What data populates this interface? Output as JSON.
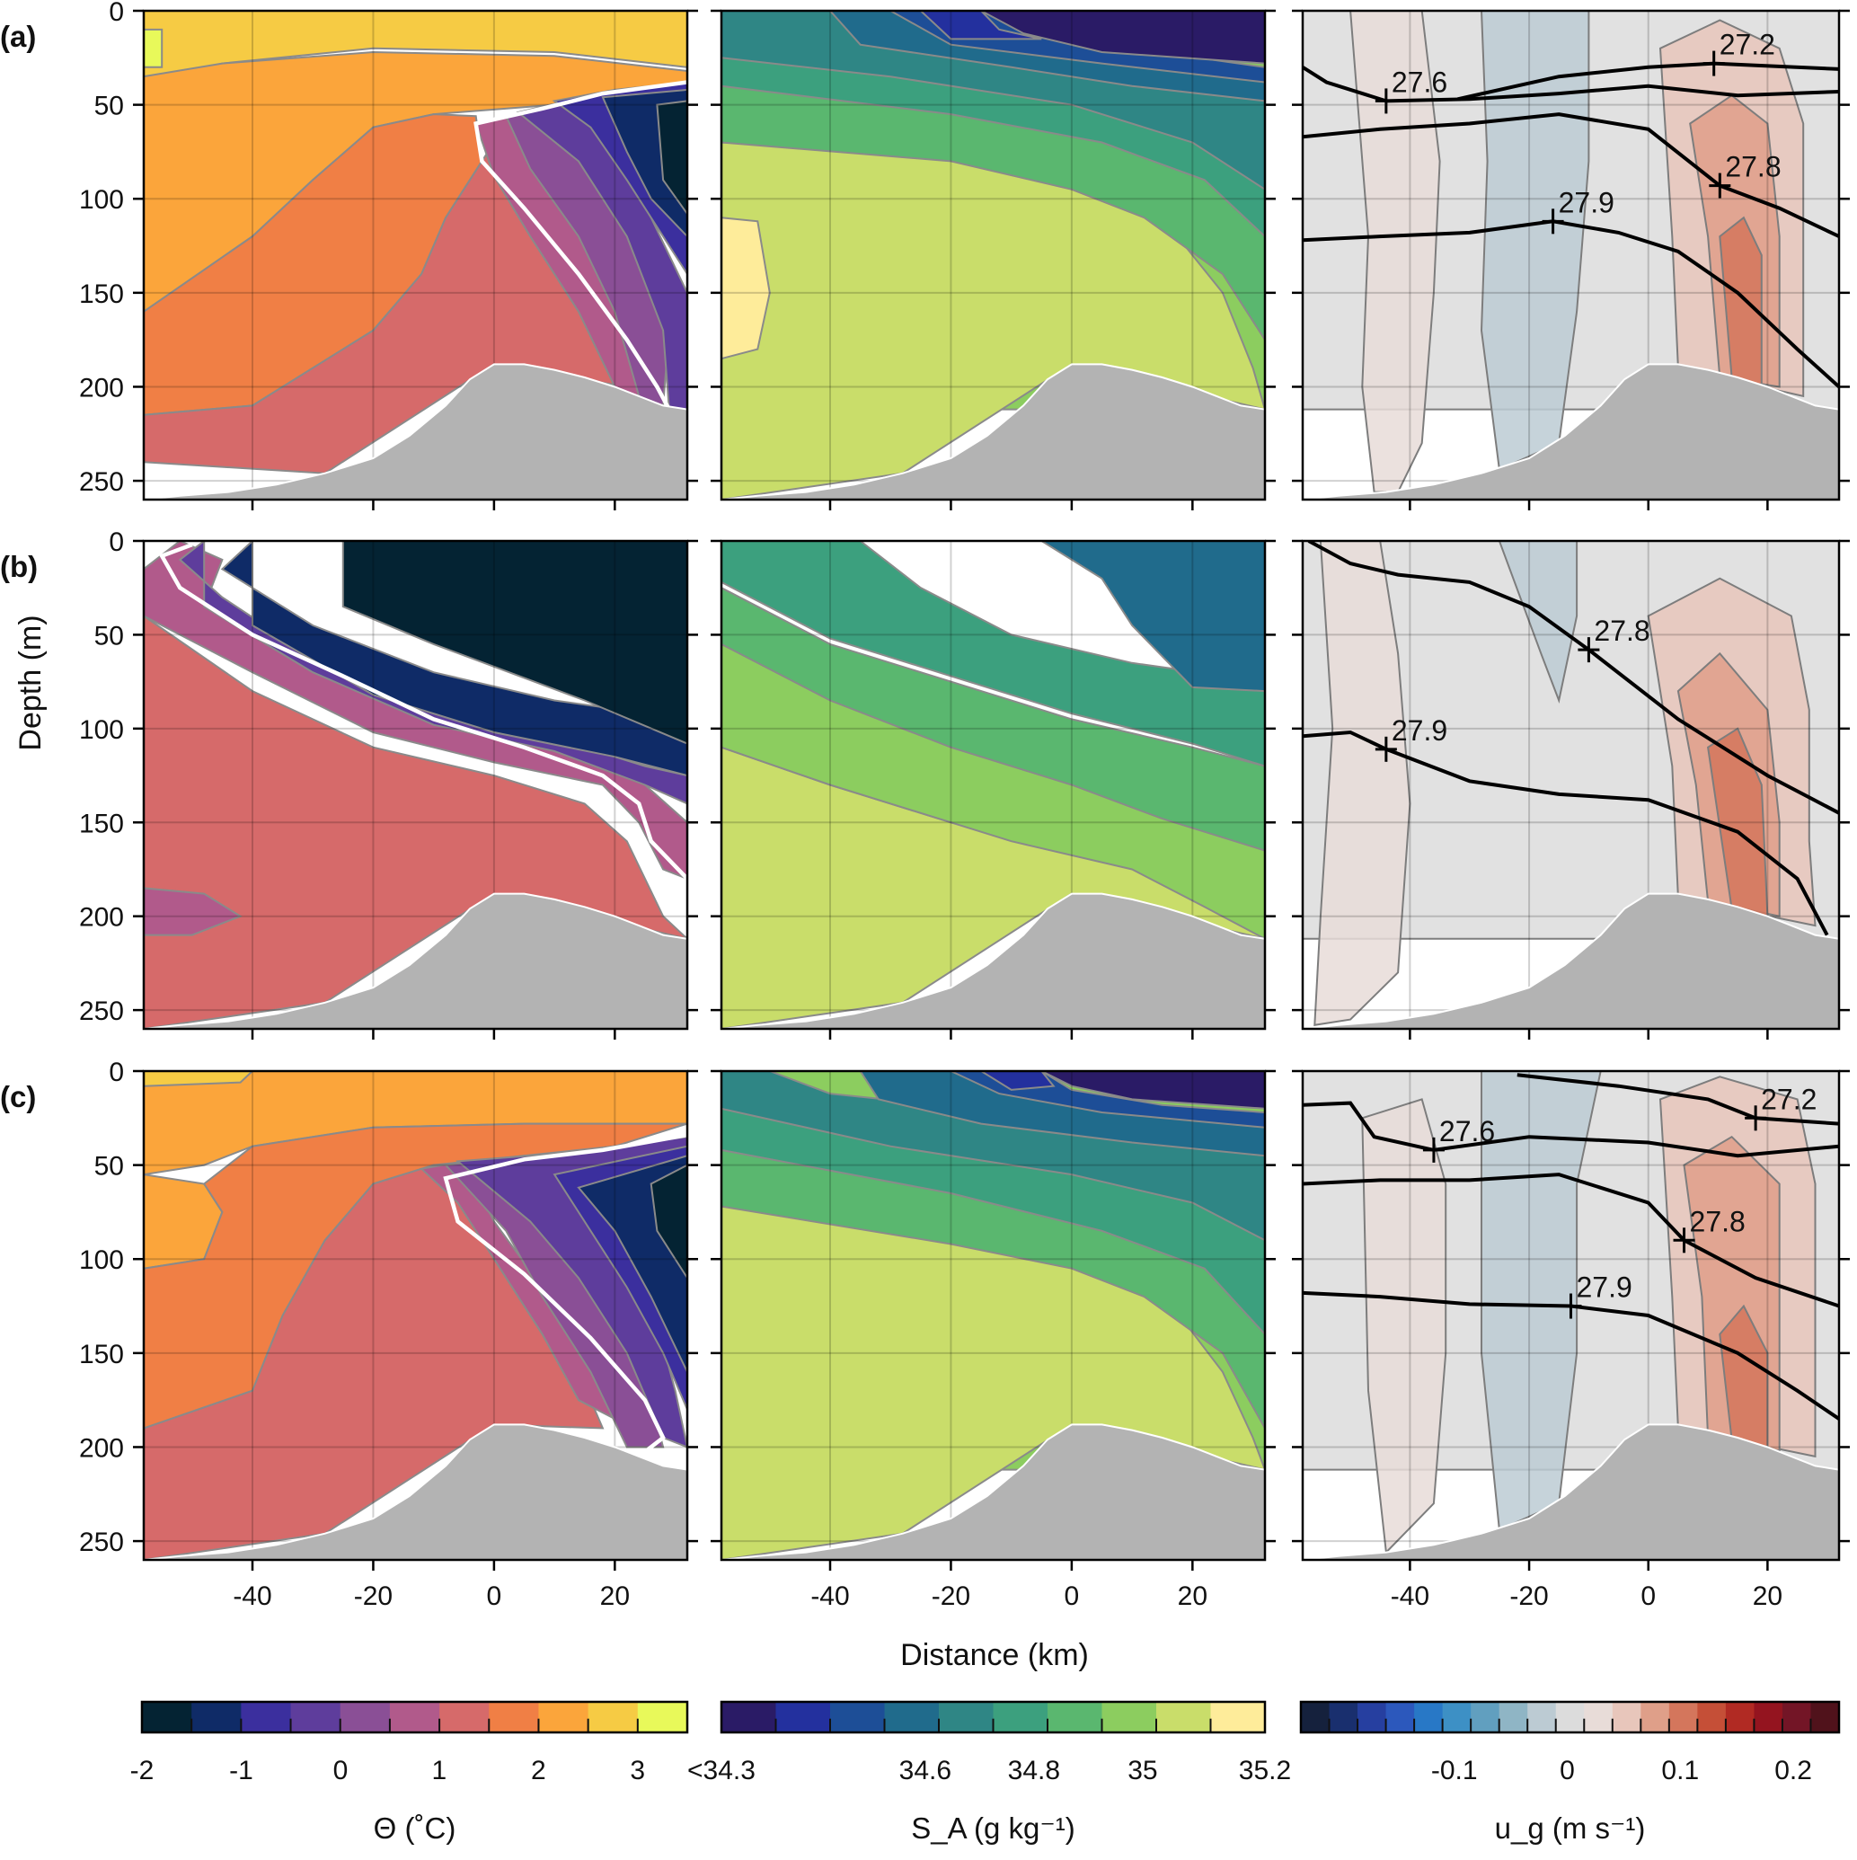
{
  "figure": {
    "panel_labels": [
      "(a)",
      "(b)",
      "(c)"
    ],
    "columns": [
      "temperature",
      "salinity",
      "velocity"
    ]
  },
  "chart_data": {
    "type": "contour-sections",
    "xlabel": "Distance (km)",
    "ylabel": "Depth (m)",
    "xlim": [
      -58,
      32
    ],
    "ylim": [
      260,
      0
    ],
    "xticks": [
      -40,
      -20,
      0,
      20
    ],
    "xtick_labels": [
      "-40",
      "-20",
      "0",
      "20"
    ],
    "yticks": [
      0,
      50,
      100,
      150,
      200,
      250
    ],
    "ytick_labels": [
      "0",
      "50",
      "100",
      "150",
      "200",
      "250"
    ],
    "bathymetry": {
      "x": [
        -58,
        -52,
        -44,
        -36,
        -28,
        -20,
        -14,
        -8,
        -4,
        0,
        5,
        10,
        15,
        20,
        24,
        28,
        32
      ],
      "depth": [
        260,
        258,
        256,
        252,
        246,
        238,
        226,
        210,
        196,
        188,
        188,
        191,
        195,
        200,
        205,
        210,
        212
      ]
    },
    "rows": [
      {
        "label": "(a)",
        "temperature_isotherm_white": {
          "x": [
            32,
            18,
            8,
            -3,
            -2,
            5,
            14,
            22,
            27,
            29
          ],
          "depth": [
            38,
            44,
            52,
            60,
            80,
            105,
            140,
            175,
            200,
            212
          ]
        },
        "isopycnals": [
          {
            "label": "27.2",
            "x": [
              -32,
              -15,
              0,
              11,
              18,
              32
            ],
            "depth": [
              47,
              35,
              30,
              28,
              29,
              31
            ],
            "mark": [
              11,
              28
            ]
          },
          {
            "label": "27.6",
            "x": [
              -58,
              -54,
              -44,
              -30,
              -15,
              0,
              15,
              32
            ],
            "depth": [
              30,
              38,
              48,
              47,
              44,
              40,
              45,
              43
            ],
            "mark": [
              -44,
              48
            ]
          },
          {
            "label": "27.8",
            "x": [
              -58,
              -45,
              -30,
              -15,
              0,
              12,
              22,
              32
            ],
            "depth": [
              67,
              63,
              60,
              55,
              63,
              93,
              105,
              120
            ],
            "mark": [
              12,
              93
            ]
          },
          {
            "label": "27.9",
            "x": [
              -58,
              -45,
              -30,
              -16,
              -5,
              5,
              15,
              25,
              32
            ],
            "depth": [
              122,
              120,
              118,
              112,
              118,
              128,
              150,
              180,
              200
            ],
            "mark": [
              -16,
              112
            ]
          }
        ]
      },
      {
        "label": "(b)",
        "temperature_isotherm_white": {
          "x": [
            -50,
            -55,
            -52,
            -40,
            -25,
            -10,
            5,
            18,
            24,
            26,
            32
          ],
          "depth": [
            2,
            8,
            25,
            50,
            72,
            95,
            110,
            125,
            140,
            160,
            180
          ]
        },
        "isopycnals": [
          {
            "label": "27.8",
            "x": [
              -57,
              -50,
              -42,
              -30,
              -20,
              -10,
              5,
              20,
              32
            ],
            "depth": [
              0,
              12,
              18,
              22,
              35,
              58,
              95,
              125,
              145
            ],
            "mark": [
              -10,
              58
            ]
          },
          {
            "label": "27.9",
            "x": [
              -58,
              -50,
              -44,
              -30,
              -15,
              0,
              15,
              25,
              30
            ],
            "depth": [
              104,
              102,
              111,
              128,
              135,
              138,
              155,
              180,
              210
            ],
            "mark": [
              -44,
              111
            ]
          }
        ]
      },
      {
        "label": "(c)",
        "temperature_isotherm_white": {
          "x": [
            32,
            18,
            5,
            -8,
            -6,
            5,
            16,
            25,
            28,
            24,
            15
          ],
          "depth": [
            34,
            42,
            47,
            57,
            80,
            108,
            142,
            175,
            195,
            205,
            210
          ]
        },
        "isopycnals": [
          {
            "label": "27.2",
            "x": [
              -22,
              -5,
              10,
              18,
              32
            ],
            "depth": [
              2,
              8,
              15,
              25,
              28
            ],
            "mark": [
              18,
              25
            ]
          },
          {
            "label": "27.6",
            "x": [
              -58,
              -50,
              -46,
              -36,
              -20,
              0,
              15,
              32
            ],
            "depth": [
              18,
              17,
              35,
              42,
              35,
              38,
              45,
              40
            ],
            "mark": [
              -36,
              42
            ]
          },
          {
            "label": "27.8",
            "x": [
              -58,
              -45,
              -30,
              -15,
              0,
              6,
              18,
              32
            ],
            "depth": [
              60,
              58,
              58,
              55,
              70,
              90,
              110,
              125
            ],
            "mark": [
              6,
              90
            ]
          },
          {
            "label": "27.9",
            "x": [
              -58,
              -45,
              -30,
              -13,
              0,
              15,
              25,
              32
            ],
            "depth": [
              118,
              120,
              124,
              125,
              130,
              150,
              170,
              185
            ],
            "mark": [
              -13,
              125
            ]
          }
        ]
      }
    ],
    "colorbars": [
      {
        "name": "temperature",
        "title": "Θ (˚C)",
        "colors": [
          "#042333",
          "#0f2b67",
          "#3b2f9e",
          "#5e3d9c",
          "#8a4f96",
          "#b15a8b",
          "#d66a6a",
          "#f07f45",
          "#fba53b",
          "#f6cb44",
          "#e8f95a"
        ],
        "tick_labels": [
          "-2",
          "-1",
          "0",
          "1",
          "2",
          "3"
        ]
      },
      {
        "name": "salinity",
        "title": "S_A (g kg⁻¹)",
        "colors": [
          "#2a1b66",
          "#23309e",
          "#1d4e97",
          "#206b8c",
          "#2f8685",
          "#3ca07e",
          "#5ab76f",
          "#8ccd5f",
          "#c9dd6a",
          "#feec9a"
        ],
        "tick_labels": [
          "<34.3",
          "34.6",
          "34.8",
          "35",
          "35.2"
        ]
      },
      {
        "name": "velocity",
        "title": "u_g (m s⁻¹)",
        "colors": [
          "#15213d",
          "#192f6e",
          "#263fa0",
          "#2c58bc",
          "#2878c6",
          "#3d90c5",
          "#619fbf",
          "#8fb5c5",
          "#bccbd3",
          "#dcdcdc",
          "#e8dcd8",
          "#e8c6bb",
          "#df9f89",
          "#d4765c",
          "#c54f37",
          "#b12a23",
          "#94141f",
          "#731526",
          "#50121b"
        ],
        "tick_labels": [
          "-0.1",
          "0",
          "0.1",
          "0.2"
        ]
      }
    ]
  }
}
